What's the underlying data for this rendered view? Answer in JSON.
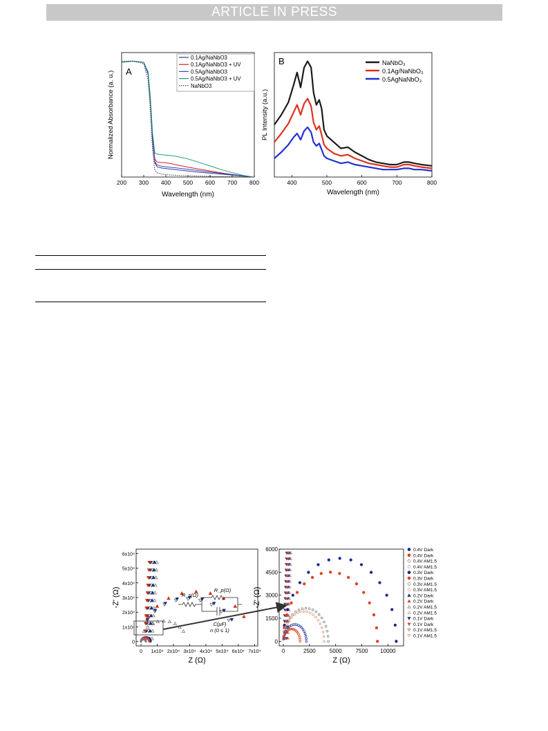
{
  "header": {
    "banner_text": "ARTICLE IN PRESS"
  },
  "chart_data": [
    {
      "type": "line",
      "panel_label": "A",
      "xlabel": "Wavelength (nm)",
      "ylabel": "Normalized  Absorbance (a. u.)",
      "xlim": [
        200,
        800
      ],
      "x_ticks": [
        "200",
        "300",
        "400",
        "500",
        "600",
        "700",
        "800"
      ],
      "legend_position": "top-right",
      "grid": false,
      "series": [
        {
          "name": "0.1Ag/NaNbO3",
          "color": "#2b3a8c",
          "style": "solid",
          "x": [
            200,
            250,
            300,
            320,
            330,
            340,
            350,
            360,
            380,
            400,
            450,
            500,
            550,
            600,
            650,
            700,
            750,
            790
          ],
          "y": [
            0.95,
            0.96,
            0.95,
            0.85,
            0.62,
            0.3,
            0.12,
            0.085,
            0.075,
            0.07,
            0.06,
            0.05,
            0.04,
            0.032,
            0.024,
            0.016,
            0.008,
            0.002
          ]
        },
        {
          "name": "0.1Ag/NaNbO3 + UV",
          "color": "#d02020",
          "style": "solid",
          "x": [
            200,
            250,
            300,
            320,
            330,
            340,
            350,
            360,
            380,
            400,
            420,
            450,
            500,
            550,
            600,
            650,
            700,
            750,
            790
          ],
          "y": [
            0.95,
            0.96,
            0.95,
            0.86,
            0.64,
            0.33,
            0.15,
            0.125,
            0.12,
            0.118,
            0.112,
            0.1,
            0.082,
            0.066,
            0.05,
            0.035,
            0.022,
            0.01,
            0.002
          ]
        },
        {
          "name": "0.5Ag/NaNbO3",
          "color": "#4040c8",
          "style": "solid",
          "x": [
            200,
            250,
            300,
            320,
            330,
            340,
            350,
            360,
            380,
            400,
            450,
            500,
            550,
            600,
            650,
            700,
            750,
            790
          ],
          "y": [
            0.95,
            0.96,
            0.95,
            0.85,
            0.63,
            0.31,
            0.13,
            0.1,
            0.09,
            0.085,
            0.075,
            0.064,
            0.053,
            0.042,
            0.031,
            0.02,
            0.01,
            0.002
          ]
        },
        {
          "name": "0.5Ag/NaNbO3 + UV",
          "color": "#1f9a7a",
          "style": "solid",
          "x": [
            200,
            250,
            300,
            320,
            330,
            340,
            350,
            360,
            380,
            400,
            420,
            450,
            500,
            550,
            600,
            650,
            700,
            750,
            790
          ],
          "y": [
            0.95,
            0.96,
            0.95,
            0.87,
            0.66,
            0.36,
            0.2,
            0.19,
            0.185,
            0.182,
            0.178,
            0.17,
            0.15,
            0.122,
            0.092,
            0.062,
            0.036,
            0.014,
            0.002
          ]
        },
        {
          "name": "NaNbO3",
          "color": "#333333",
          "style": "dotted",
          "x": [
            200,
            250,
            300,
            320,
            330,
            340,
            350,
            360,
            380,
            400,
            450,
            500,
            550,
            600,
            650,
            700,
            750,
            790
          ],
          "y": [
            0.96,
            0.96,
            0.94,
            0.8,
            0.55,
            0.22,
            0.06,
            0.035,
            0.025,
            0.02,
            0.014,
            0.01,
            0.008,
            0.006,
            0.004,
            0.003,
            0.002,
            0.001
          ]
        }
      ]
    },
    {
      "type": "line",
      "panel_label": "B",
      "xlabel": "Wavelength (nm)",
      "ylabel": "PL Intensity (a.u.)",
      "xlim": [
        350,
        800
      ],
      "x_ticks": [
        "400",
        "500",
        "600",
        "700",
        "800"
      ],
      "legend_position": "top-right",
      "grid": false,
      "series": [
        {
          "name": "NaNbO₃",
          "color": "#1a1a1a",
          "x": [
            350,
            370,
            390,
            405,
            415,
            425,
            435,
            445,
            455,
            462,
            470,
            478,
            485,
            492,
            500,
            520,
            540,
            560,
            580,
            600,
            620,
            640,
            660,
            680,
            700,
            720,
            735,
            750,
            770,
            800
          ],
          "y": [
            0.42,
            0.5,
            0.6,
            0.74,
            0.84,
            0.72,
            0.88,
            0.93,
            0.88,
            0.68,
            0.58,
            0.62,
            0.55,
            0.38,
            0.33,
            0.28,
            0.23,
            0.24,
            0.2,
            0.17,
            0.14,
            0.12,
            0.11,
            0.1,
            0.1,
            0.12,
            0.12,
            0.11,
            0.1,
            0.09
          ]
        },
        {
          "name": "0.1Ag/NaNbO₃",
          "color": "#e03020",
          "x": [
            350,
            370,
            390,
            405,
            415,
            425,
            435,
            445,
            455,
            462,
            470,
            478,
            485,
            492,
            500,
            520,
            540,
            560,
            580,
            600,
            620,
            640,
            660,
            680,
            700,
            720,
            735,
            750,
            770,
            800
          ],
          "y": [
            0.28,
            0.35,
            0.43,
            0.52,
            0.58,
            0.5,
            0.59,
            0.63,
            0.57,
            0.44,
            0.38,
            0.41,
            0.34,
            0.26,
            0.23,
            0.19,
            0.17,
            0.18,
            0.15,
            0.13,
            0.11,
            0.1,
            0.09,
            0.08,
            0.08,
            0.1,
            0.1,
            0.09,
            0.08,
            0.07
          ]
        },
        {
          "name": "0.5AgNaNbO₃",
          "color": "#2030d0",
          "x": [
            350,
            370,
            390,
            405,
            415,
            425,
            435,
            445,
            455,
            462,
            470,
            478,
            485,
            492,
            500,
            520,
            540,
            560,
            580,
            600,
            620,
            640,
            660,
            680,
            700,
            720,
            735,
            750,
            770,
            800
          ],
          "y": [
            0.15,
            0.2,
            0.26,
            0.32,
            0.35,
            0.3,
            0.37,
            0.4,
            0.36,
            0.28,
            0.25,
            0.27,
            0.22,
            0.17,
            0.15,
            0.13,
            0.11,
            0.12,
            0.1,
            0.09,
            0.08,
            0.07,
            0.06,
            0.06,
            0.06,
            0.07,
            0.07,
            0.06,
            0.06,
            0.05
          ]
        }
      ]
    },
    {
      "type": "scatter",
      "panel_label": "",
      "xlabel": "Z (Ω)",
      "ylabel": "-Z' (Ω)",
      "xlim": [
        -3000,
        72000
      ],
      "ylim": [
        -3000,
        63000
      ],
      "x_ticks": [
        "0",
        "1x10⁴",
        "2x10⁴",
        "3x10⁴",
        "4x10⁴",
        "5x10⁴",
        "6x10⁴",
        "7x10⁴"
      ],
      "y_ticks": [
        "0",
        "1x10⁴",
        "2x10⁴",
        "3x10⁴",
        "4x10⁴",
        "5x10⁴",
        "6x10⁴"
      ],
      "inset_labels": [
        "R_s(Ω)",
        "R_p(Ω)",
        "C(μF)",
        "n (0 ≤ 1)"
      ],
      "arcs": [
        {
          "name": "0.1V Dark",
          "diameter": 60000,
          "color": "#1a2a80",
          "marker": "tri-down-filled"
        },
        {
          "name": "0.1V AM1.5",
          "diameter": 58000,
          "color": "#555555",
          "marker": "tri-down-open"
        },
        {
          "name": "0.2V Dark",
          "diameter": 68000,
          "color": "#d03010",
          "marker": "tri-up-filled"
        },
        {
          "name": "0.2V AM1.5",
          "diameter": 28000,
          "color": "#666666",
          "marker": "tri-up-open"
        }
      ]
    },
    {
      "type": "scatter",
      "panel_label": "",
      "xlabel": "Z (Ω)",
      "ylabel": "-Z' (Ω)",
      "xlim": [
        -400,
        11500
      ],
      "ylim": [
        -300,
        6000
      ],
      "x_ticks": [
        "0",
        "2500",
        "5000",
        "7500",
        "10000"
      ],
      "y_ticks": [
        "0",
        "1500",
        "3000",
        "4500",
        "6000"
      ],
      "legend_position": "right",
      "legend": [
        {
          "label": "0.4V Dark",
          "color": "#1a2a90",
          "marker": "circle-filled"
        },
        {
          "label": "0.4V Dark",
          "color": "#e04020",
          "marker": "circle-filled"
        },
        {
          "label": "0.4V AM1.5",
          "color": "#777777",
          "marker": "circle-open"
        },
        {
          "label": "0.4V AM1.5",
          "color": "#e09070",
          "marker": "circle-open"
        },
        {
          "label": "0.3V Dark",
          "color": "#1a2a90",
          "marker": "circle-filled"
        },
        {
          "label": "0.3V Dark",
          "color": "#e04020",
          "marker": "circle-filled"
        },
        {
          "label": "0.3V AM1.5",
          "color": "#777777",
          "marker": "circle-open"
        },
        {
          "label": "0.3V AM1.5",
          "color": "#e09070",
          "marker": "circle-open"
        },
        {
          "label": "0.2V Dark",
          "color": "#1a2a90",
          "marker": "tri-up-filled"
        },
        {
          "label": "0.2V Dark",
          "color": "#e04020",
          "marker": "tri-up-filled"
        },
        {
          "label": "0.2V AM1.5",
          "color": "#777777",
          "marker": "tri-up-open"
        },
        {
          "label": "0.2V AM1.5",
          "color": "#e09070",
          "marker": "tri-up-open"
        },
        {
          "label": "0.1V Dark",
          "color": "#1a2a90",
          "marker": "tri-down-filled"
        },
        {
          "label": "0.1V Dark",
          "color": "#e04020",
          "marker": "tri-down-filled"
        },
        {
          "label": "0.1V AM1.5",
          "color": "#777777",
          "marker": "tri-down-open"
        },
        {
          "label": "0.1V AM1.5",
          "color": "#e09070",
          "marker": "tri-down-open"
        }
      ],
      "arcs": [
        {
          "name": "0.4V Dark",
          "diameter": 10800,
          "color": "#1a2a90",
          "marker": "circle-filled"
        },
        {
          "name": "0.4V Dark",
          "diameter": 9000,
          "color": "#e04020",
          "marker": "circle-filled"
        },
        {
          "name": "0.3V AM1.5",
          "diameter": 4300,
          "color": "#777777",
          "marker": "circle-open"
        },
        {
          "name": "0.3V AM1.5",
          "diameter": 3900,
          "color": "#e09070",
          "marker": "circle-open"
        },
        {
          "name": "0.4V AM1.5",
          "diameter": 2200,
          "color": "#1a2a90",
          "marker": "circle-open"
        },
        {
          "name": "0.4V AM1.5",
          "diameter": 1600,
          "color": "#e04020",
          "marker": "circle-open"
        }
      ]
    }
  ]
}
